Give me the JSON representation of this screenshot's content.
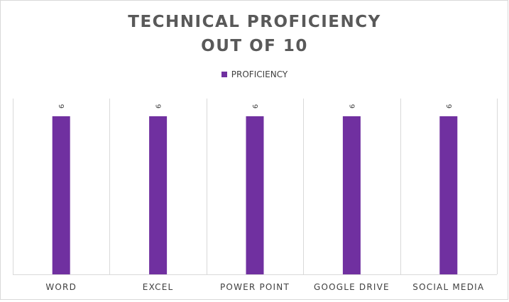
{
  "chart_data": {
    "type": "bar",
    "title_lines": [
      "TECHNICAL PROFICIENCY",
      "OUT OF 10"
    ],
    "categories": [
      "WORD",
      "EXCEL",
      "POWER POINT",
      "GOOGLE DRIVE",
      "SOCIAL MEDIA"
    ],
    "series": [
      {
        "name": "PROFICIENCY",
        "values": [
          9,
          9,
          9,
          9,
          9
        ],
        "color": "#7030a0"
      }
    ],
    "ylim": [
      0,
      9
    ],
    "data_labels": true,
    "data_label_rotation": "vertical",
    "legend_position": "top",
    "grid": "vertical-category-separators"
  }
}
